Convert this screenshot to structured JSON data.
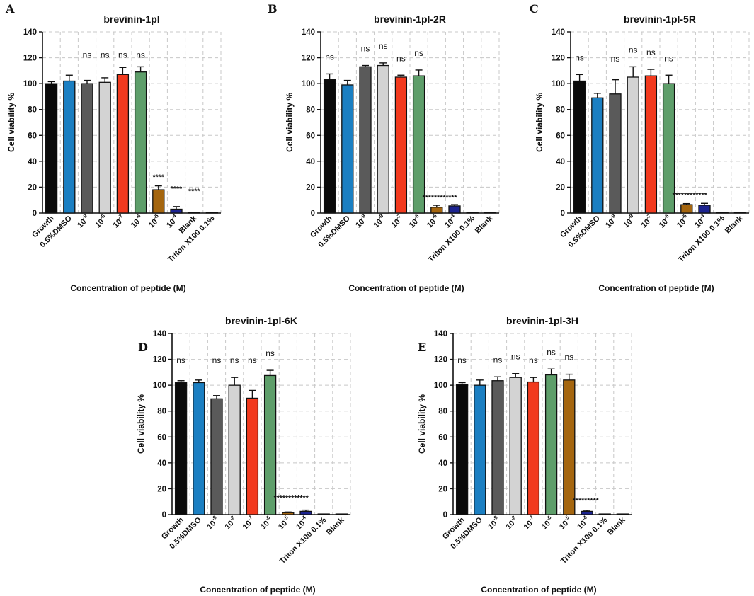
{
  "chart_data": [
    {
      "panel": "A",
      "type": "bar",
      "title": "brevinin-1pl",
      "xlabel": "Concentration of peptide (M)",
      "ylabel": "Cell viability %",
      "ylim": [
        0,
        140
      ],
      "yticks": [
        "0",
        "20",
        "40",
        "60",
        "80",
        "100",
        "120",
        "140"
      ],
      "grid": true,
      "categories": [
        {
          "base": "Growth",
          "exp": ""
        },
        {
          "base": "0.5%DMSO",
          "exp": ""
        },
        {
          "base": "10",
          "exp": "-9"
        },
        {
          "base": "10",
          "exp": "-8"
        },
        {
          "base": "10",
          "exp": "-7"
        },
        {
          "base": "10",
          "exp": "-6"
        },
        {
          "base": "10",
          "exp": "-5"
        },
        {
          "base": "10",
          "exp": "-4"
        },
        {
          "base": "Blank",
          "exp": ""
        },
        {
          "base": "Triton X100 0.1%",
          "exp": ""
        }
      ],
      "values": [
        100,
        102,
        100,
        101,
        107,
        109,
        18,
        3,
        0.5,
        0.5
      ],
      "errors": [
        1.5,
        4.5,
        2.5,
        3.5,
        5.5,
        4,
        3,
        2,
        0,
        0
      ],
      "colors": [
        "#0a0a0a",
        "#1b7fc2",
        "#5a5a5a",
        "#d3d3d3",
        "#f23a1e",
        "#5e9e6a",
        "#a5660f",
        "#1c2390",
        "#9a9a9a",
        "#e22a20"
      ],
      "annotations": [
        {
          "text": "ns",
          "bar": 2,
          "kind": "ns"
        },
        {
          "text": "ns",
          "bar": 3,
          "kind": "ns"
        },
        {
          "text": "ns",
          "bar": 4,
          "kind": "ns"
        },
        {
          "text": "ns",
          "bar": 5,
          "kind": "ns"
        },
        {
          "text": "****",
          "bar": 6,
          "kind": "star",
          "y": 26
        },
        {
          "text": "****",
          "bar": 7,
          "kind": "star",
          "y": 17
        },
        {
          "text": "****",
          "bar": 8,
          "kind": "star",
          "y": 15
        }
      ]
    },
    {
      "panel": "B",
      "type": "bar",
      "title": "brevinin-1pl-2R",
      "xlabel": "Concentration of peptide (M)",
      "ylabel": "Cell viability %",
      "ylim": [
        0,
        140
      ],
      "yticks": [
        "0",
        "20",
        "40",
        "60",
        "80",
        "100",
        "120",
        "140"
      ],
      "grid": true,
      "categories": [
        {
          "base": "Growth",
          "exp": ""
        },
        {
          "base": "0.5%DMSO",
          "exp": ""
        },
        {
          "base": "10",
          "exp": "-9"
        },
        {
          "base": "10",
          "exp": "-8"
        },
        {
          "base": "10",
          "exp": "-7"
        },
        {
          "base": "10",
          "exp": "-6"
        },
        {
          "base": "10",
          "exp": "-5"
        },
        {
          "base": "10",
          "exp": "-4"
        },
        {
          "base": "Triton X100 0.1%",
          "exp": ""
        },
        {
          "base": "Blank",
          "exp": ""
        }
      ],
      "values": [
        103,
        99,
        113,
        114,
        105,
        106,
        4.5,
        5.5,
        0.5,
        0.5
      ],
      "errors": [
        4.5,
        3.5,
        1,
        2,
        1.5,
        4.5,
        1.5,
        1,
        0,
        0
      ],
      "colors": [
        "#0a0a0a",
        "#1b7fc2",
        "#5a5a5a",
        "#d3d3d3",
        "#f23a1e",
        "#5e9e6a",
        "#a5660f",
        "#1c2390",
        "#9a9a9a",
        "#e22a20"
      ],
      "annotations": [
        {
          "text": "ns",
          "bar": 0,
          "kind": "ns"
        },
        {
          "text": "ns",
          "bar": 2,
          "kind": "ns"
        },
        {
          "text": "ns",
          "bar": 3,
          "kind": "ns"
        },
        {
          "text": "ns",
          "bar": 4,
          "kind": "ns"
        },
        {
          "text": "ns",
          "bar": 5,
          "kind": "ns"
        },
        {
          "text": "************",
          "bar": 7,
          "kind": "star",
          "y": 10
        }
      ]
    },
    {
      "panel": "C",
      "type": "bar",
      "title": "brevinin-1pl-5R",
      "xlabel": "Concentration of peptide (M)",
      "ylabel": "Cell viability %",
      "ylim": [
        0,
        140
      ],
      "yticks": [
        "0",
        "20",
        "40",
        "60",
        "80",
        "100",
        "120",
        "140"
      ],
      "grid": true,
      "categories": [
        {
          "base": "Growth",
          "exp": ""
        },
        {
          "base": "0.5%DMSO",
          "exp": ""
        },
        {
          "base": "10",
          "exp": "-9"
        },
        {
          "base": "10",
          "exp": "-8"
        },
        {
          "base": "10",
          "exp": "-7"
        },
        {
          "base": "10",
          "exp": "-6"
        },
        {
          "base": "10",
          "exp": "-5"
        },
        {
          "base": "10",
          "exp": "-4"
        },
        {
          "base": "Triton X100 0.1%",
          "exp": ""
        },
        {
          "base": "Blank",
          "exp": ""
        }
      ],
      "values": [
        102,
        89,
        92,
        105,
        106,
        100,
        6.5,
        6,
        0.5,
        0.5
      ],
      "errors": [
        5,
        3.5,
        11,
        8,
        5,
        6.5,
        0.8,
        1.5,
        0,
        0
      ],
      "colors": [
        "#0a0a0a",
        "#1b7fc2",
        "#5a5a5a",
        "#d3d3d3",
        "#f23a1e",
        "#5e9e6a",
        "#a5660f",
        "#1c2390",
        "#9a9a9a",
        "#e22a20"
      ],
      "annotations": [
        {
          "text": "ns",
          "bar": 0,
          "kind": "ns"
        },
        {
          "text": "ns",
          "bar": 2,
          "kind": "ns"
        },
        {
          "text": "ns",
          "bar": 3,
          "kind": "ns"
        },
        {
          "text": "ns",
          "bar": 4,
          "kind": "ns"
        },
        {
          "text": "ns",
          "bar": 5,
          "kind": "ns"
        },
        {
          "text": "************",
          "bar": 7,
          "kind": "star",
          "y": 12
        }
      ]
    },
    {
      "panel": "D",
      "type": "bar",
      "title": "brevinin-1pl-6K",
      "xlabel": "Concentration of peptide (M)",
      "ylabel": "Cell viability %",
      "ylim": [
        0,
        140
      ],
      "yticks": [
        "0",
        "20",
        "40",
        "60",
        "80",
        "100",
        "120",
        "140"
      ],
      "grid": true,
      "categories": [
        {
          "base": "Growth",
          "exp": ""
        },
        {
          "base": "0.5%DMSO",
          "exp": ""
        },
        {
          "base": "10",
          "exp": "-9"
        },
        {
          "base": "10",
          "exp": "-8"
        },
        {
          "base": "10",
          "exp": "-7"
        },
        {
          "base": "10",
          "exp": "-6"
        },
        {
          "base": "10",
          "exp": "-5"
        },
        {
          "base": "10",
          "exp": "-4"
        },
        {
          "base": "Triton X100 0.1%",
          "exp": ""
        },
        {
          "base": "Blank",
          "exp": ""
        }
      ],
      "values": [
        102,
        102,
        89.5,
        100,
        90,
        107.5,
        1.5,
        2.5,
        0.5,
        0.5
      ],
      "errors": [
        1.5,
        2,
        2.5,
        6,
        6,
        4,
        0.5,
        1,
        0,
        0
      ],
      "colors": [
        "#0a0a0a",
        "#1b7fc2",
        "#5a5a5a",
        "#d3d3d3",
        "#f23a1e",
        "#5e9e6a",
        "#a5660f",
        "#1c2390",
        "#9a9a9a",
        "#e22a20"
      ],
      "annotations": [
        {
          "text": "ns",
          "bar": 0,
          "kind": "ns"
        },
        {
          "text": "ns",
          "bar": 2,
          "kind": "ns"
        },
        {
          "text": "ns",
          "bar": 3,
          "kind": "ns"
        },
        {
          "text": "ns",
          "bar": 4,
          "kind": "ns"
        },
        {
          "text": "ns",
          "bar": 5,
          "kind": "ns"
        },
        {
          "text": "************",
          "bar": 7,
          "kind": "star",
          "y": 11
        }
      ]
    },
    {
      "panel": "E",
      "type": "bar",
      "title": "brevinin-1pl-3H",
      "xlabel": "Concentration of peptide (M)",
      "ylabel": "Cell viability %",
      "ylim": [
        0,
        140
      ],
      "yticks": [
        "0",
        "20",
        "40",
        "60",
        "80",
        "100",
        "120",
        "140"
      ],
      "grid": true,
      "categories": [
        {
          "base": "Growth",
          "exp": ""
        },
        {
          "base": "0.5%DMSO",
          "exp": ""
        },
        {
          "base": "10",
          "exp": "-9"
        },
        {
          "base": "10",
          "exp": "-8"
        },
        {
          "base": "10",
          "exp": "-7"
        },
        {
          "base": "10",
          "exp": "-6"
        },
        {
          "base": "10",
          "exp": "-5"
        },
        {
          "base": "10",
          "exp": "-4"
        },
        {
          "base": "Triton X100 0.1%",
          "exp": ""
        },
        {
          "base": "Blank",
          "exp": ""
        }
      ],
      "values": [
        100.5,
        100,
        103.5,
        106,
        102.5,
        108,
        104,
        2.5,
        0.5,
        0.5
      ],
      "errors": [
        1.5,
        4,
        3,
        3,
        3.5,
        4.5,
        4.5,
        0.8,
        0,
        0
      ],
      "colors": [
        "#0a0a0a",
        "#1b7fc2",
        "#5a5a5a",
        "#d3d3d3",
        "#f23a1e",
        "#5e9e6a",
        "#a5660f",
        "#1c2390",
        "#9a9a9a",
        "#e22a20"
      ],
      "annotations": [
        {
          "text": "ns",
          "bar": 0,
          "kind": "ns"
        },
        {
          "text": "ns",
          "bar": 2,
          "kind": "ns"
        },
        {
          "text": "ns",
          "bar": 3,
          "kind": "ns"
        },
        {
          "text": "ns",
          "bar": 4,
          "kind": "ns"
        },
        {
          "text": "ns",
          "bar": 5,
          "kind": "ns"
        },
        {
          "text": "ns",
          "bar": 6,
          "kind": "ns"
        },
        {
          "text": "*********",
          "bar": 8,
          "kind": "star",
          "y": 9
        }
      ]
    }
  ]
}
